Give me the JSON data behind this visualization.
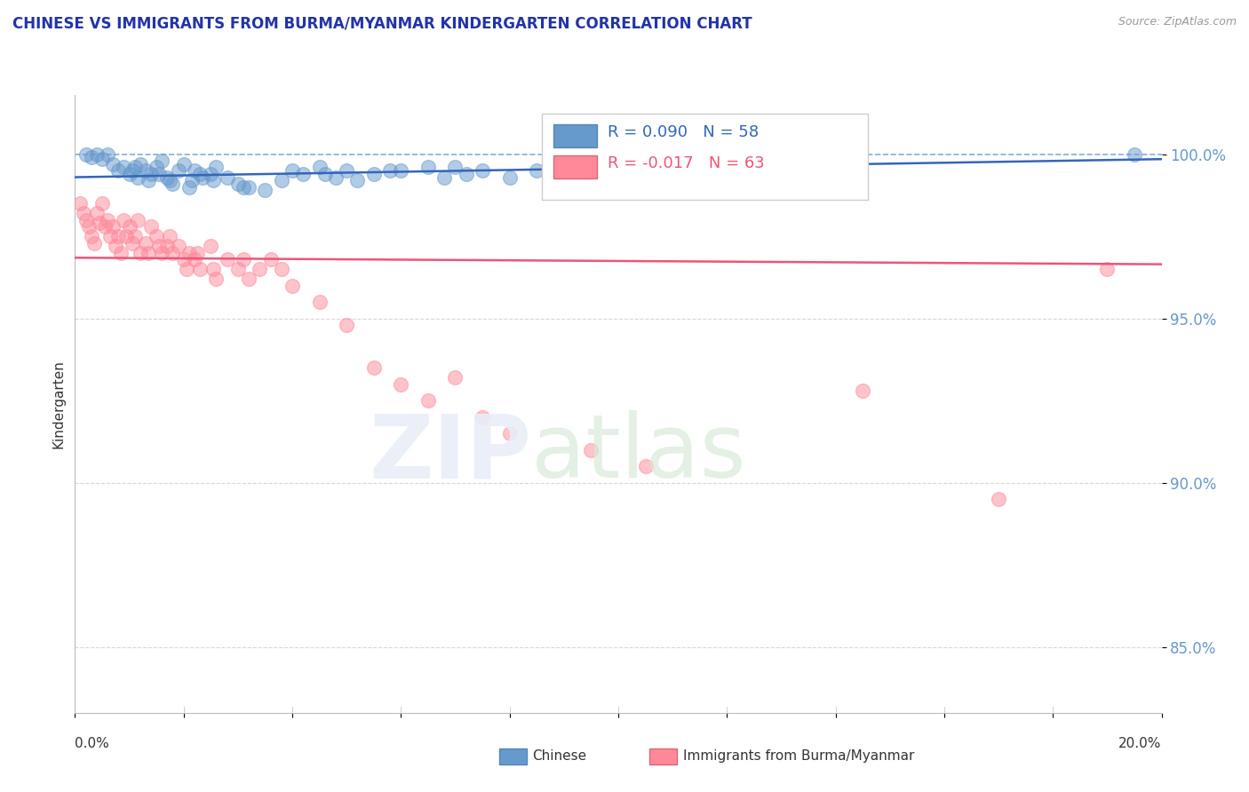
{
  "title": "CHINESE VS IMMIGRANTS FROM BURMA/MYANMAR KINDERGARTEN CORRELATION CHART",
  "source": "Source: ZipAtlas.com",
  "ylabel": "Kindergarten",
  "yticks": [
    100.0,
    95.0,
    90.0,
    85.0
  ],
  "ytick_labels": [
    "100.0%",
    "95.0%",
    "90.0%",
    "85.0%"
  ],
  "xlim": [
    0.0,
    20.0
  ],
  "ylim": [
    83.0,
    101.8
  ],
  "legend_label1": "Chinese",
  "legend_label2": "Immigrants from Burma/Myanmar",
  "R1": 0.09,
  "N1": 58,
  "R2": -0.017,
  "N2": 63,
  "blue_color": "#6699CC",
  "pink_color": "#FF8899",
  "blue_line_color": "#3366BB",
  "pink_line_color": "#EE5577",
  "blue_trend_x0": 0.0,
  "blue_trend_y0": 99.3,
  "blue_trend_x1": 20.0,
  "blue_trend_y1": 99.85,
  "pink_trend_x0": 0.0,
  "pink_trend_y0": 96.85,
  "pink_trend_x1": 20.0,
  "pink_trend_y1": 96.65,
  "blue_dots_x": [
    0.2,
    0.3,
    0.4,
    0.5,
    0.6,
    0.7,
    0.8,
    0.9,
    1.0,
    1.05,
    1.1,
    1.15,
    1.2,
    1.3,
    1.35,
    1.4,
    1.5,
    1.55,
    1.6,
    1.7,
    1.75,
    1.8,
    1.9,
    2.0,
    2.1,
    2.15,
    2.2,
    2.3,
    2.35,
    2.5,
    2.55,
    2.6,
    2.8,
    3.0,
    3.1,
    3.2,
    3.5,
    3.8,
    4.0,
    4.2,
    4.5,
    4.6,
    4.8,
    5.0,
    5.2,
    5.5,
    5.8,
    6.0,
    6.5,
    6.8,
    7.0,
    7.2,
    7.5,
    8.0,
    8.5,
    9.0,
    9.5,
    19.5
  ],
  "blue_dots_y": [
    100.0,
    99.9,
    100.0,
    99.85,
    100.0,
    99.7,
    99.5,
    99.6,
    99.4,
    99.5,
    99.6,
    99.3,
    99.7,
    99.5,
    99.2,
    99.4,
    99.6,
    99.4,
    99.8,
    99.3,
    99.2,
    99.1,
    99.5,
    99.7,
    99.0,
    99.2,
    99.5,
    99.4,
    99.3,
    99.4,
    99.2,
    99.6,
    99.3,
    99.1,
    99.0,
    99.0,
    98.9,
    99.2,
    99.5,
    99.4,
    99.6,
    99.4,
    99.3,
    99.5,
    99.2,
    99.4,
    99.5,
    99.5,
    99.6,
    99.3,
    99.6,
    99.4,
    99.5,
    99.3,
    99.5,
    99.6,
    99.4,
    100.0
  ],
  "pink_dots_x": [
    0.1,
    0.15,
    0.2,
    0.25,
    0.3,
    0.35,
    0.4,
    0.45,
    0.5,
    0.55,
    0.6,
    0.65,
    0.7,
    0.75,
    0.8,
    0.85,
    0.9,
    0.95,
    1.0,
    1.05,
    1.1,
    1.15,
    1.2,
    1.3,
    1.35,
    1.4,
    1.5,
    1.55,
    1.6,
    1.7,
    1.75,
    1.8,
    1.9,
    2.0,
    2.05,
    2.1,
    2.2,
    2.25,
    2.3,
    2.5,
    2.55,
    2.6,
    2.8,
    3.0,
    3.1,
    3.2,
    3.4,
    3.6,
    3.8,
    4.0,
    4.5,
    5.0,
    5.5,
    6.0,
    6.5,
    7.0,
    7.5,
    8.0,
    9.5,
    10.5,
    14.5,
    17.0,
    19.0
  ],
  "pink_dots_y": [
    98.5,
    98.2,
    98.0,
    97.8,
    97.5,
    97.3,
    98.2,
    97.9,
    98.5,
    97.8,
    98.0,
    97.5,
    97.8,
    97.2,
    97.5,
    97.0,
    98.0,
    97.5,
    97.8,
    97.3,
    97.5,
    98.0,
    97.0,
    97.3,
    97.0,
    97.8,
    97.5,
    97.2,
    97.0,
    97.2,
    97.5,
    97.0,
    97.2,
    96.8,
    96.5,
    97.0,
    96.8,
    97.0,
    96.5,
    97.2,
    96.5,
    96.2,
    96.8,
    96.5,
    96.8,
    96.2,
    96.5,
    96.8,
    96.5,
    96.0,
    95.5,
    94.8,
    93.5,
    93.0,
    92.5,
    93.2,
    92.0,
    91.5,
    91.0,
    90.5,
    92.8,
    89.5,
    96.5
  ]
}
